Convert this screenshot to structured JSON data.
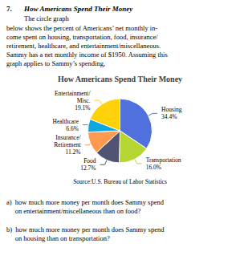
{
  "chart_data": {
    "type": "pie",
    "title": "How Americans Spend Their Money",
    "categories": [
      "Housing",
      "Transportation",
      "Food",
      "Insurance/\nRetirement",
      "Healthcare",
      "Entertainment/\nMisc."
    ],
    "values": [
      34.4,
      16.0,
      12.7,
      11.2,
      6.6,
      19.1
    ],
    "value_labels": [
      "34.4%",
      "16.0%",
      "12.7%",
      "11.2%",
      "6.6%",
      "19.1%"
    ],
    "data_labels": true,
    "legend": false,
    "annotations": [
      "7.",
      "How Americans Spend Their Money",
      "The circle graph",
      "below shows the percent of Americans’ net monthly in-\ncome spent on housing, transportation, food, insurance/\nretirement, healthcare, and entertainment/miscellaneous.\nSammy has a net monthly income of $1950. Assuming this\ngraph applies to Sammy’s spending,",
      "Source:U.S. Bureau of Labor Statistics",
      "a)  how much more money per month does Sammy spend\n     on entertainment/miscellaneous than on food?",
      "b)  how much more money per month does Sammy spend\n     on housing than on transportation?"
    ]
  }
}
